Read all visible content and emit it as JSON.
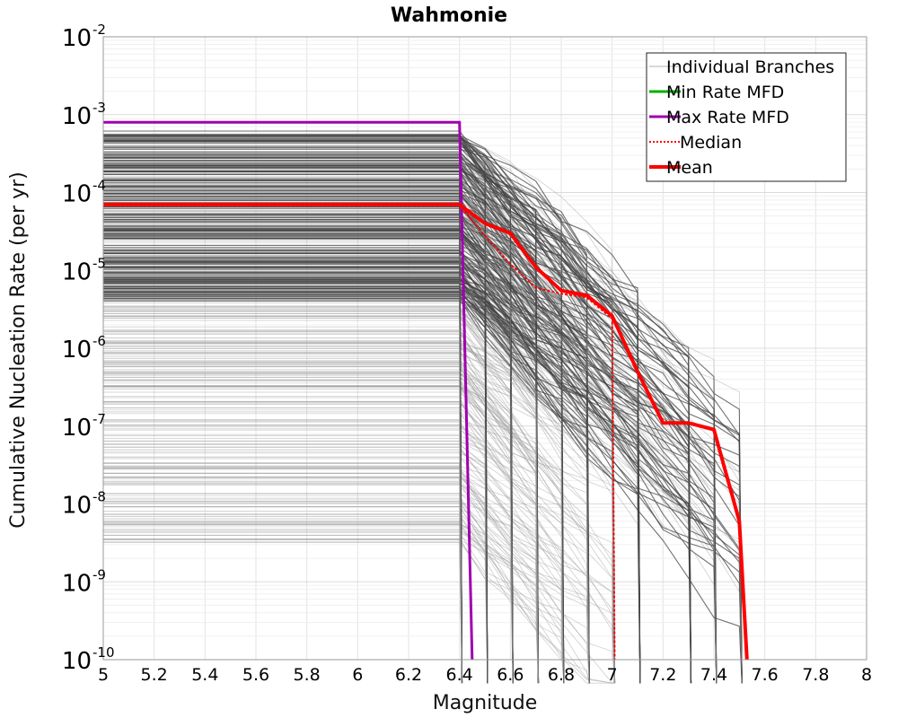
{
  "chart_data": {
    "type": "line",
    "title": "Wahmonie",
    "xlabel": "Magnitude",
    "ylabel": "Cumulative Nucleation Rate (per yr)",
    "x_scale": "linear",
    "y_scale": "log",
    "xlim": [
      5,
      8
    ],
    "ylim": [
      1e-10,
      0.01
    ],
    "grid": true,
    "legend_position": "top-right",
    "x_ticks": [
      5,
      5.2,
      5.4,
      5.6,
      5.8,
      6,
      6.2,
      6.4,
      6.6,
      6.8,
      7,
      7.2,
      7.4,
      7.6,
      7.8,
      8
    ],
    "x_tick_labels": [
      "5",
      "5.2",
      "5.4",
      "5.6",
      "5.8",
      "6",
      "6.2",
      "6.4",
      "6.6",
      "6.8",
      "7",
      "7.2",
      "7.4",
      "7.6",
      "7.8",
      "8"
    ],
    "y_tick_exponents": [
      -2,
      -3,
      -4,
      -5,
      -6,
      -7,
      -8,
      -9,
      -10
    ],
    "y_tick_base": "10",
    "series": [
      {
        "name": "Individual Branches",
        "color": "#555555",
        "style": "thin-gray",
        "note_visible": false
      },
      {
        "name": "Min Rate MFD",
        "color": "#00b000",
        "style": "solid",
        "x": [],
        "y": []
      },
      {
        "name": "Max Rate MFD",
        "color": "#a000b0",
        "style": "solid",
        "x": [
          5.0,
          6.4,
          6.45
        ],
        "y": [
          0.0008,
          0.0008,
          1e-10
        ]
      },
      {
        "name": "Median",
        "color": "#ff0000",
        "style": "dotted",
        "x": [
          5.0,
          6.4,
          6.5,
          6.6,
          6.7,
          6.8,
          6.9,
          7.0,
          7.01
        ],
        "y": [
          6.8e-05,
          6.8e-05,
          2.8e-05,
          1.2e-05,
          6e-06,
          5e-06,
          4.5e-06,
          2.4e-06,
          1e-10
        ]
      },
      {
        "name": "Mean",
        "color": "#ff0000",
        "style": "thick",
        "x": [
          5.0,
          6.4,
          6.5,
          6.6,
          6.7,
          6.8,
          6.9,
          7.0,
          7.1,
          7.2,
          7.3,
          7.4,
          7.5,
          7.53
        ],
        "y": [
          7e-05,
          7e-05,
          4e-05,
          3e-05,
          1.1e-05,
          5.5e-06,
          4.8e-06,
          2.6e-06,
          5e-07,
          1.1e-07,
          1.1e-07,
          9e-08,
          6e-09,
          1e-10
        ]
      }
    ]
  }
}
